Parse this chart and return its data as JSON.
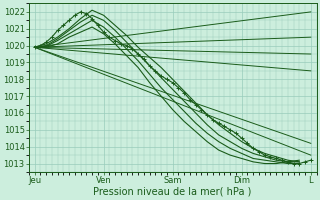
{
  "background_color": "#cceedd",
  "plot_bg_color": "#cceedd",
  "grid_color": "#99ccbb",
  "line_color": "#1a5c1a",
  "marker_color": "#1a5c1a",
  "xlabel": "Pression niveau de la mer( hPa )",
  "ylabel": "",
  "ylim": [
    1012.5,
    1022.5
  ],
  "yticks": [
    1013,
    1014,
    1015,
    1016,
    1017,
    1018,
    1019,
    1020,
    1021,
    1022
  ],
  "xlim": [
    0,
    100
  ],
  "xtick_positions": [
    2,
    26,
    50,
    74,
    98
  ],
  "xtick_labels": [
    "Jeu",
    "Ven",
    "Sam",
    "Dim",
    "L"
  ],
  "xlabel_fontsize": 7,
  "ytick_fontsize": 6,
  "xtick_fontsize": 6,
  "main_line_x": [
    2,
    4,
    6,
    8,
    10,
    12,
    14,
    16,
    18,
    20,
    22,
    24,
    26,
    28,
    30,
    32,
    34,
    36,
    38,
    40,
    42,
    44,
    46,
    48,
    50,
    52,
    54,
    56,
    58,
    60,
    62,
    64,
    66,
    68,
    70,
    72,
    74,
    76,
    78,
    80,
    82,
    84,
    86,
    88,
    90,
    92,
    94,
    96,
    98
  ],
  "main_line_y": [
    1019.9,
    1020.0,
    1020.2,
    1020.5,
    1020.9,
    1021.2,
    1021.5,
    1021.8,
    1022.0,
    1021.9,
    1021.6,
    1021.2,
    1020.8,
    1020.5,
    1020.3,
    1020.1,
    1020.0,
    1019.8,
    1019.5,
    1019.2,
    1018.8,
    1018.5,
    1018.2,
    1018.0,
    1017.8,
    1017.5,
    1017.2,
    1016.8,
    1016.5,
    1016.2,
    1015.9,
    1015.6,
    1015.4,
    1015.2,
    1015.0,
    1014.8,
    1014.5,
    1014.2,
    1013.9,
    1013.7,
    1013.5,
    1013.4,
    1013.3,
    1013.2,
    1013.1,
    1013.0,
    1013.0,
    1013.1,
    1013.2
  ],
  "straight_lines": [
    {
      "x0": 2,
      "y0": 1019.9,
      "x1": 98,
      "y1": 1022.0
    },
    {
      "x0": 2,
      "y0": 1019.9,
      "x1": 98,
      "y1": 1020.5
    },
    {
      "x0": 2,
      "y0": 1019.9,
      "x1": 98,
      "y1": 1019.5
    },
    {
      "x0": 2,
      "y0": 1019.9,
      "x1": 98,
      "y1": 1018.5
    },
    {
      "x0": 2,
      "y0": 1019.9,
      "x1": 98,
      "y1": 1014.2
    },
    {
      "x0": 2,
      "y0": 1019.9,
      "x1": 98,
      "y1": 1013.5
    }
  ],
  "curved_lines": [
    [
      1019.9,
      1020.1,
      1020.5,
      1021.0,
      1021.6,
      1022.1,
      1021.8,
      1021.2,
      1020.6,
      1019.9,
      1019.3,
      1018.7,
      1018.0,
      1017.3,
      1016.6,
      1015.9,
      1015.3,
      1014.8,
      1014.3,
      1013.9,
      1013.6,
      1013.4,
      1013.2,
      1013.1
    ],
    [
      1019.9,
      1020.0,
      1020.4,
      1020.9,
      1021.4,
      1021.8,
      1021.5,
      1020.9,
      1020.2,
      1019.5,
      1018.8,
      1018.1,
      1017.4,
      1016.7,
      1016.0,
      1015.3,
      1014.7,
      1014.3,
      1013.9,
      1013.6,
      1013.4,
      1013.2,
      1013.1,
      1013.1
    ],
    [
      1019.9,
      1019.95,
      1020.3,
      1020.7,
      1021.1,
      1021.5,
      1021.1,
      1020.5,
      1019.8,
      1019.1,
      1018.3,
      1017.5,
      1016.8,
      1016.1,
      1015.4,
      1014.8,
      1014.3,
      1013.9,
      1013.6,
      1013.3,
      1013.2,
      1013.1,
      1013.0,
      1013.0
    ],
    [
      1019.9,
      1019.9,
      1020.1,
      1020.5,
      1020.8,
      1021.1,
      1020.7,
      1020.1,
      1019.4,
      1018.7,
      1017.8,
      1017.0,
      1016.2,
      1015.5,
      1014.9,
      1014.3,
      1013.8,
      1013.5,
      1013.3,
      1013.1,
      1013.0,
      1013.0,
      1013.1,
      1013.2
    ]
  ],
  "curved_x": [
    2,
    6,
    10,
    14,
    18,
    22,
    26,
    30,
    34,
    38,
    42,
    46,
    50,
    54,
    58,
    62,
    66,
    70,
    74,
    78,
    82,
    86,
    90,
    94
  ]
}
